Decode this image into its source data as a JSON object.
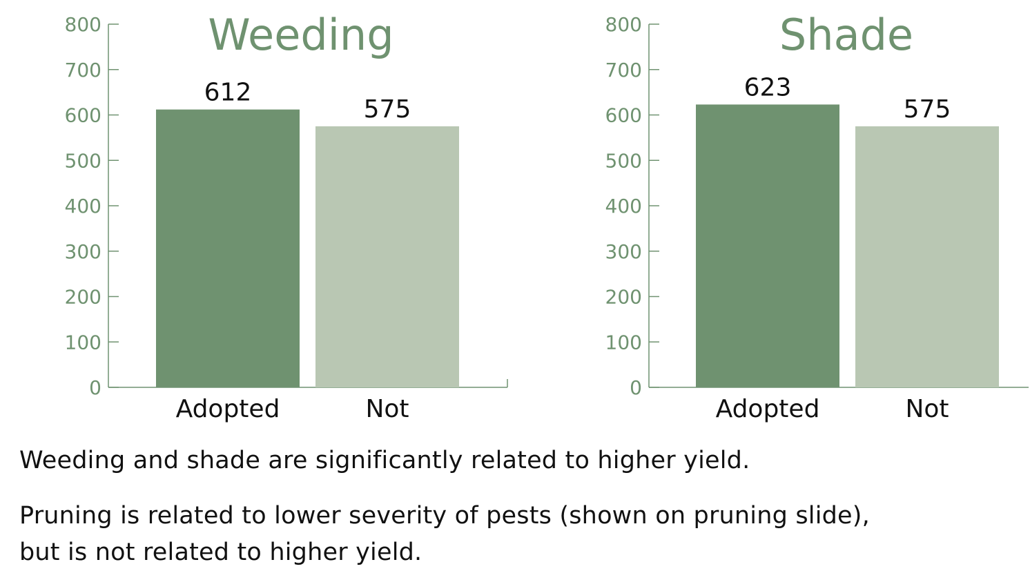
{
  "colors": {
    "adopted": "#6f9270",
    "not": "#b9c7b3",
    "axis": "#6f9270",
    "title": "#6f9270",
    "text": "#111111"
  },
  "chart_data": [
    {
      "type": "bar",
      "title": "Weeding",
      "categories": [
        "Adopted",
        "Not"
      ],
      "values": [
        612,
        575
      ],
      "data_labels": [
        "612",
        "575"
      ],
      "ylim": [
        0,
        800
      ],
      "yticks": [
        0,
        100,
        200,
        300,
        400,
        500,
        600,
        700,
        800
      ],
      "grid": false,
      "legend": "none"
    },
    {
      "type": "bar",
      "title": "Shade",
      "categories": [
        "Adopted",
        "Not"
      ],
      "values": [
        623,
        575
      ],
      "data_labels": [
        "623",
        "575"
      ],
      "ylim": [
        0,
        800
      ],
      "yticks": [
        0,
        100,
        200,
        300,
        400,
        500,
        600,
        700,
        800
      ],
      "grid": false,
      "legend": "none"
    }
  ],
  "captions": [
    "Weeding and shade are significantly related to higher yield.",
    "Pruning is related to lower severity of pests (shown on pruning slide),",
    "but is not related to higher yield."
  ]
}
